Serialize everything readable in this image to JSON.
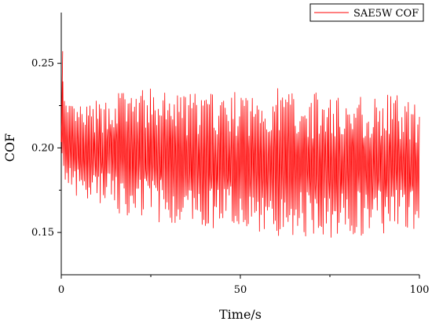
{
  "chart_data": {
    "type": "line",
    "title": "",
    "xlabel": "Time/s",
    "ylabel": "COF",
    "xlim": [
      0,
      100
    ],
    "ylim": [
      0.125,
      0.28
    ],
    "x_ticks": [
      0,
      50,
      100
    ],
    "x_tick_labels": [
      "0",
      "50",
      "100"
    ],
    "y_ticks": [
      0.15,
      0.2,
      0.25
    ],
    "y_tick_labels": [
      "0.15",
      "0.20",
      "0.25"
    ],
    "grid": false,
    "legend_position": "top-right",
    "series": [
      {
        "name": "SAE5W COF",
        "color": "#ff0000",
        "x": [
          0,
          0.3,
          0.6,
          1.0,
          1.5,
          2.0,
          2.5,
          3.0,
          4.0,
          5.0,
          6.0,
          7.0,
          8.0,
          10.0,
          12.0,
          15.0,
          20.0,
          25.0,
          30.0,
          35.0,
          40.0,
          45.0,
          50.0,
          55.0,
          60.0,
          65.0,
          70.0,
          75.0,
          80.0,
          85.0,
          90.0,
          95.0,
          100.0
        ],
        "y": [
          0.195,
          0.257,
          0.19,
          0.232,
          0.185,
          0.225,
          0.178,
          0.22,
          0.172,
          0.224,
          0.17,
          0.226,
          0.168,
          0.228,
          0.166,
          0.232,
          0.162,
          0.233,
          0.16,
          0.232,
          0.156,
          0.233,
          0.155,
          0.232,
          0.152,
          0.234,
          0.15,
          0.233,
          0.149,
          0.232,
          0.148,
          0.231,
          0.187
        ],
        "band_upper": [
          0.21,
          0.257,
          0.232,
          0.232,
          0.226,
          0.226,
          0.226,
          0.226,
          0.226,
          0.226,
          0.226,
          0.226,
          0.226,
          0.228,
          0.228,
          0.235,
          0.235,
          0.235,
          0.233,
          0.233,
          0.233,
          0.233,
          0.233,
          0.233,
          0.236,
          0.236,
          0.233,
          0.233,
          0.232,
          0.232,
          0.232,
          0.232,
          0.225
        ],
        "band_lower": [
          0.19,
          0.18,
          0.178,
          0.176,
          0.175,
          0.174,
          0.173,
          0.172,
          0.171,
          0.17,
          0.169,
          0.168,
          0.167,
          0.166,
          0.164,
          0.162,
          0.159,
          0.157,
          0.155,
          0.154,
          0.152,
          0.151,
          0.15,
          0.149,
          0.148,
          0.148,
          0.147,
          0.147,
          0.147,
          0.147,
          0.148,
          0.148,
          0.15
        ]
      }
    ]
  }
}
